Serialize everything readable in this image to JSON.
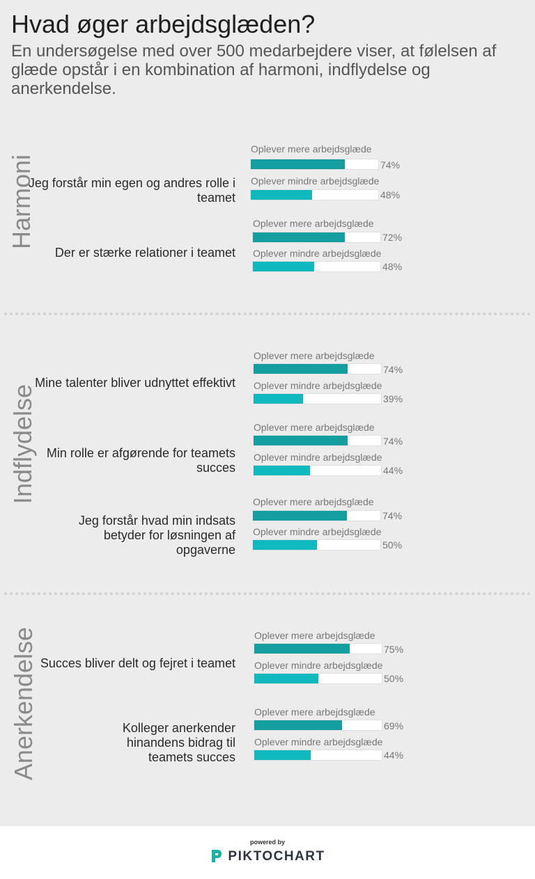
{
  "header": {
    "title": "Hvad øger arbejdsglæden?",
    "subtitle": "En undersøgelse med over 500 medarbejdere viser, at følelsen af glæde opstår i en kombination af harmoni, indflydelse og anerkendelse."
  },
  "colors": {
    "more": "#149ea0",
    "less": "#10b9be",
    "track": "#ffffff"
  },
  "chart_data": {
    "type": "bar",
    "orientation": "horizontal",
    "xlim": [
      0,
      100
    ],
    "series_labels": {
      "more": "Oplever mere arbejdsglæde",
      "less": "Oplever mindre arbejdsglæde"
    },
    "sections": [
      {
        "label": "Harmoni",
        "items": [
          {
            "statement": "Jeg forstår min egen og andres rolle i teamet",
            "more": 74,
            "less": 48,
            "more_text": "74%",
            "less_text": "48%"
          },
          {
            "statement": "Der er stærke relationer i teamet",
            "more": 72,
            "less": 48,
            "more_text": "72%",
            "less_text": "48%"
          }
        ]
      },
      {
        "label": "Indflydelse",
        "items": [
          {
            "statement": "Mine talenter bliver udnyttet effektivt",
            "more": 74,
            "less": 39,
            "more_text": "74%",
            "less_text": "39%"
          },
          {
            "statement": "Min rolle er afgørende for teamets succes",
            "more": 74,
            "less": 44,
            "more_text": "74%",
            "less_text": "44%"
          },
          {
            "statement": "Jeg forstår hvad min indsats betyder for løsningen af opgaverne",
            "more": 74,
            "less": 50,
            "more_text": "74%",
            "less_text": "50%"
          }
        ]
      },
      {
        "label": "Anerkendelse",
        "items": [
          {
            "statement": "Succes bliver delt og fejret i teamet",
            "more": 75,
            "less": 50,
            "more_text": "75%",
            "less_text": "50%"
          },
          {
            "statement": "Kolleger anerkender hinandens bidrag til teamets succes",
            "more": 69,
            "less": 44,
            "more_text": "69%",
            "less_text": "44%"
          }
        ]
      }
    ]
  },
  "footer": {
    "powered": "powered by",
    "brand": "PIKTOCHART"
  }
}
